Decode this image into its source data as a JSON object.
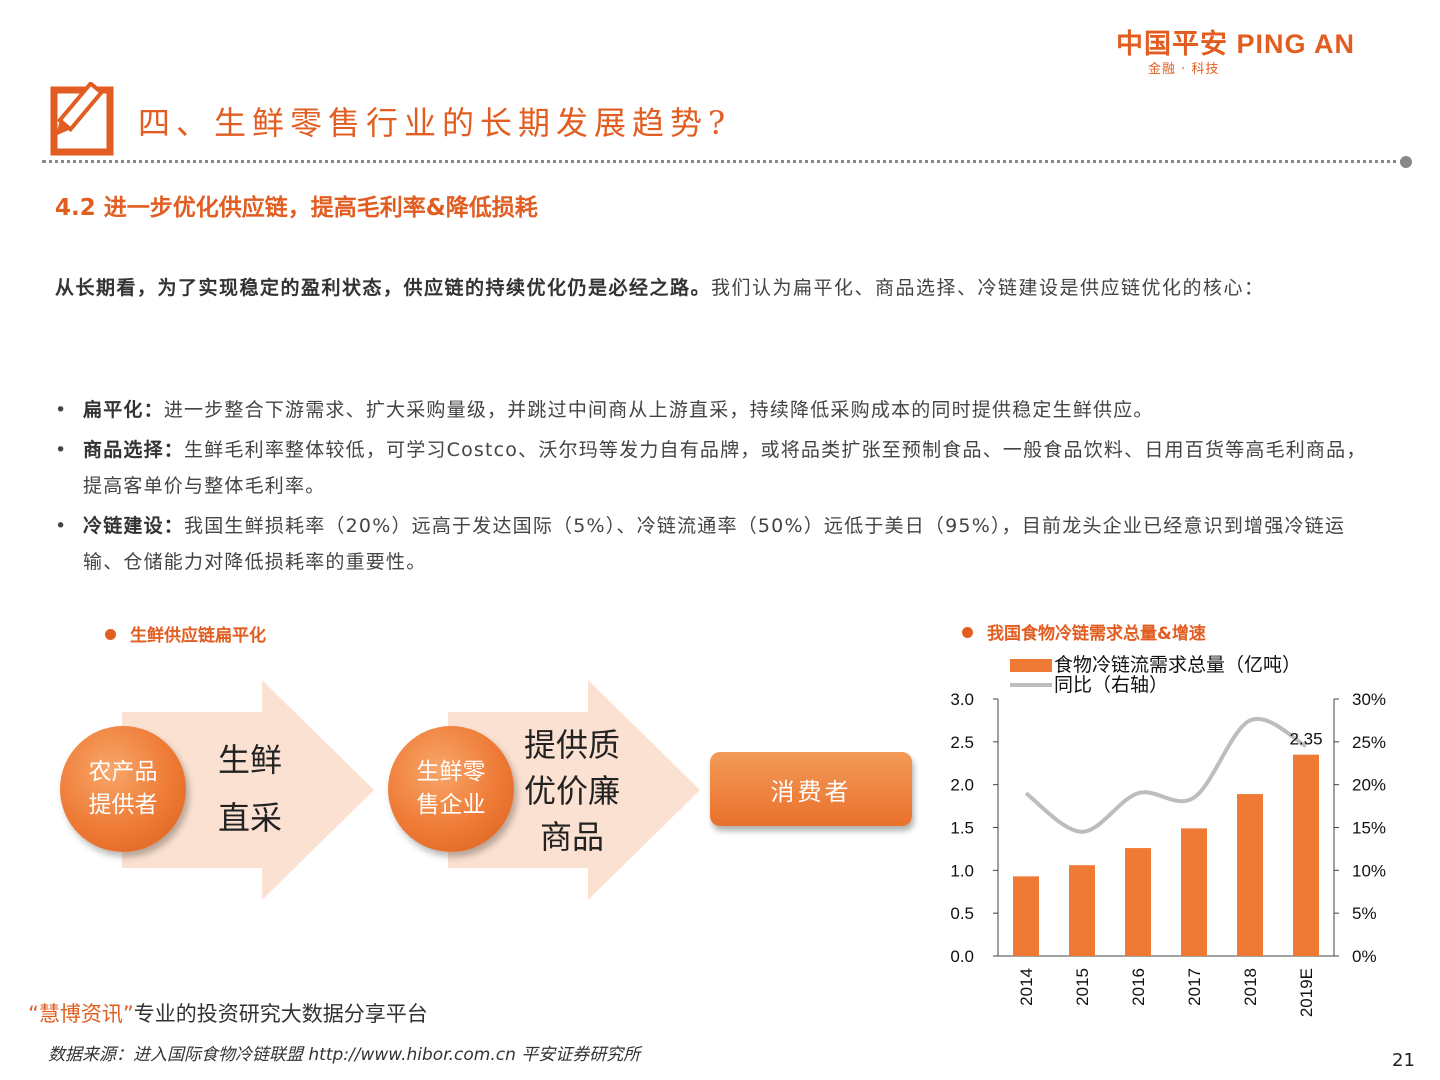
{
  "header": {
    "logo_main": "中国平安 PING AN",
    "logo_sub": "金融 · 科技",
    "page_title": "四、生鲜零售行业的长期发展趋势?",
    "icon": "edit-pencil-icon"
  },
  "section_title": "4.2 进一步优化供应链，提高毛利率&降低损耗",
  "intro": {
    "bold": "从长期看，为了实现稳定的盈利状态，供应链的持续优化仍是必经之路。",
    "normal": "我们认为扁平化、商品选择、冷链建设是供应链优化的核心："
  },
  "bullets": [
    {
      "term": "扁平化：",
      "text": "进一步整合下游需求、扩大采购量级，并跳过中间商从上游直采，持续降低采购成本的同时提供稳定生鲜供应。"
    },
    {
      "term": "商品选择：",
      "text": "生鲜毛利率整体较低，可学习Costco、沃尔玛等发力自有品牌，或将品类扩张至预制食品、一般食品饮料、日用百货等高毛利商品，提高客单价与整体毛利率。"
    },
    {
      "term": "冷链建设：",
      "text": "我国生鲜损耗率（20%）远高于发达国际（5%）、冷链流通率（50%）远低于美日（95%），目前龙头企业已经意识到增强冷链运输、仓储能力对降低损耗率的重要性。"
    }
  ],
  "diagram": {
    "title": "生鲜供应链扁平化",
    "node1": [
      "农产品",
      "提供者"
    ],
    "step1": [
      "生鲜",
      "直采"
    ],
    "node2": [
      "生鲜零",
      "售企业"
    ],
    "step2": [
      "提供质",
      "优价廉",
      "商品"
    ],
    "node3": "消费者",
    "colors": {
      "accent": "#ee7a35",
      "arrow": "#fbe1d1"
    }
  },
  "chart_title": "我国食物冷链需求总量&增速",
  "chart_data": {
    "type": "bar",
    "categories": [
      "2014",
      "2015",
      "2016",
      "2017",
      "2018",
      "2019E"
    ],
    "series": [
      {
        "name": "食物冷链流需求总量（亿吨）",
        "type": "bar",
        "axis": "left",
        "color": "#ee7a35",
        "values": [
          0.93,
          1.06,
          1.26,
          1.49,
          1.89,
          2.35
        ]
      },
      {
        "name": "同比（右轴）",
        "type": "line",
        "axis": "right",
        "color": "#bdbdbd",
        "values": [
          19.0,
          14.5,
          19.0,
          18.5,
          27.5,
          24.5
        ]
      }
    ],
    "ylim": [
      0,
      3.0
    ],
    "yticks": [
      "0.0",
      "0.5",
      "1.0",
      "1.5",
      "2.0",
      "2.5",
      "3.0"
    ],
    "y2lim": [
      0,
      30
    ],
    "y2ticks": [
      "0%",
      "5%",
      "10%",
      "15%",
      "20%",
      "25%",
      "30%"
    ],
    "data_labels": [
      {
        "index": 5,
        "text": "2.35"
      }
    ],
    "legend": "top",
    "grid": false
  },
  "watermark": {
    "open_quote": "“",
    "highlight": "慧博资讯",
    "close_quote": "”",
    "text": "专业的投资研究大数据分享平台"
  },
  "footnote": "数据来源：进入国际食物冷链联盟 http://www.hibor.com.cn 平安证券研究所",
  "page_number": "21"
}
